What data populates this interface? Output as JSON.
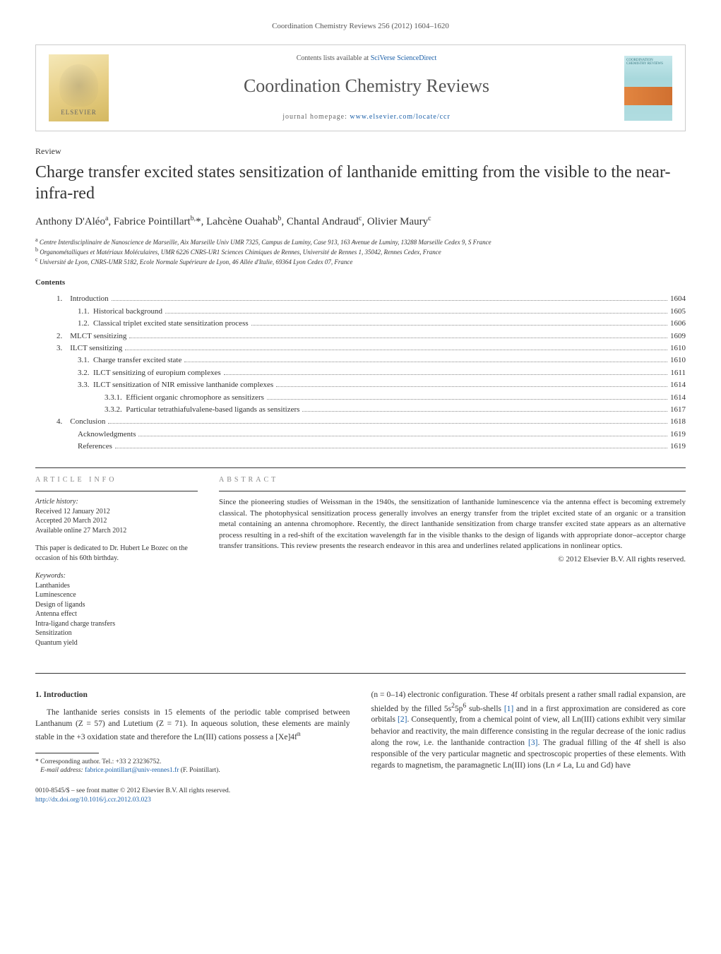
{
  "colors": {
    "link": "#1a5fa8",
    "text": "#333333",
    "muted": "#555555",
    "rule": "#333333",
    "banner_border": "#cccccc",
    "elsevier_grad_top": "#f5e8b8",
    "elsevier_grad_bot": "#d4b860",
    "cover_grad_top": "#c8e8ec",
    "cover_grad_bot": "#b0dce0",
    "cover_band": "#e28540"
  },
  "typography": {
    "title_fontsize_pt": 18,
    "journal_name_fontsize_pt": 20,
    "body_fontsize_pt": 9,
    "affil_fontsize_pt": 7,
    "font_family": "Georgia / Charis / serif"
  },
  "header": {
    "citation": "Coordination Chemistry Reviews 256 (2012) 1604–1620"
  },
  "banner": {
    "publisher_label": "ELSEVIER",
    "contents_line_prefix": "Contents lists available at ",
    "contents_line_link": "SciVerse ScienceDirect",
    "journal_name": "Coordination Chemistry Reviews",
    "homepage_prefix": "journal homepage: ",
    "homepage_link": "www.elsevier.com/locate/ccr",
    "cover_title": "COORDINATION CHEMISTRY REVIEWS"
  },
  "article": {
    "type": "Review",
    "title": "Charge transfer excited states sensitization of lanthanide emitting from the visible to the near-infra-red",
    "authors_html": "Anthony D'Aléo<sup>a</sup>, Fabrice Pointillart<sup>b,</sup>*, Lahcène Ouahab<sup>b</sup>, Chantal Andraud<sup>c</sup>, Olivier Maury<sup>c</sup>",
    "affiliations": {
      "a": "Centre Interdisciplinaire de Nanoscience de Marseille, Aix Marseille Univ UMR 7325, Campus de Luminy, Case 913, 163 Avenue de Luminy, 13288 Marseille Cedex 9, S France",
      "b": "Organométalliques et Matériaux Moléculaires, UMR 6226 CNRS-UR1 Sciences Chimiques de Rennes, Université de Rennes 1, 35042, Rennes Cedex, France",
      "c": "Université de Lyon, CNRS-UMR 5182, Ecole Normale Supérieure de Lyon, 46 Allée d'Italie, 69364 Lyon Cedex 07, France"
    }
  },
  "contents": {
    "heading": "Contents",
    "items": [
      {
        "num": "1.",
        "label": "Introduction",
        "page": "1604",
        "indent": 0
      },
      {
        "num": "1.1.",
        "label": "Historical background",
        "page": "1605",
        "indent": 1
      },
      {
        "num": "1.2.",
        "label": "Classical triplet excited state sensitization process",
        "page": "1606",
        "indent": 1
      },
      {
        "num": "2.",
        "label": "MLCT sensitizing",
        "page": "1609",
        "indent": 0
      },
      {
        "num": "3.",
        "label": "ILCT sensitizing",
        "page": "1610",
        "indent": 0
      },
      {
        "num": "3.1.",
        "label": "Charge transfer excited state",
        "page": "1610",
        "indent": 1
      },
      {
        "num": "3.2.",
        "label": "ILCT sensitizing of europium complexes",
        "page": "1611",
        "indent": 1
      },
      {
        "num": "3.3.",
        "label": "ILCT sensitization of NIR emissive lanthanide complexes",
        "page": "1614",
        "indent": 1
      },
      {
        "num": "3.3.1.",
        "label": "Efficient organic chromophore as sensitizers",
        "page": "1614",
        "indent": 2
      },
      {
        "num": "3.3.2.",
        "label": "Particular tetrathiafulvalene-based ligands as sensitizers",
        "page": "1617",
        "indent": 2
      },
      {
        "num": "4.",
        "label": "Conclusion",
        "page": "1618",
        "indent": 0
      },
      {
        "num": "",
        "label": "Acknowledgments",
        "page": "1619",
        "indent": 1
      },
      {
        "num": "",
        "label": "References",
        "page": "1619",
        "indent": 1
      }
    ]
  },
  "article_info": {
    "heading": "article info",
    "history_label": "Article history:",
    "history": [
      "Received 12 January 2012",
      "Accepted 20 March 2012",
      "Available online 27 March 2012"
    ],
    "dedication": "This paper is dedicated to Dr. Hubert Le Bozec on the occasion of his 60th birthday.",
    "keywords_label": "Keywords:",
    "keywords": [
      "Lanthanides",
      "Luminescence",
      "Design of ligands",
      "Antenna effect",
      "Intra-ligand charge transfers",
      "Sensitization",
      "Quantum yield"
    ]
  },
  "abstract": {
    "heading": "abstract",
    "text": "Since the pioneering studies of Weissman in the 1940s, the sensitization of lanthanide luminescence via the antenna effect is becoming extremely classical. The photophysical sensitization process generally involves an energy transfer from the triplet excited state of an organic or a transition metal containing an antenna chromophore. Recently, the direct lanthanide sensitization from charge transfer excited state appears as an alternative process resulting in a red-shift of the excitation wavelength far in the visible thanks to the design of ligands with appropriate donor–acceptor charge transfer transitions. This review presents the research endeavor in this area and underlines related applications in nonlinear optics.",
    "copyright": "© 2012 Elsevier B.V. All rights reserved."
  },
  "body": {
    "section_num": "1.",
    "section_title": "Introduction",
    "para1": "The lanthanide series consists in 15 elements of the periodic table comprised between Lanthanum (Z = 57) and Lutetium (Z = 71). In aqueous solution, these elements are mainly stable in the +3 oxidation state and therefore the Ln(III) cations possess a [Xe]4f",
    "para1_sup": "n",
    "para2_a": "(n = 0–14) electronic configuration. These 4f orbitals present a rather small radial expansion, are shielded by the filled 5s",
    "para2_sup1": "2",
    "para2_b": "5p",
    "para2_sup2": "6",
    "para2_c": " sub-shells ",
    "ref1": "[1]",
    "para2_d": " and in a first approximation are considered as core orbitals ",
    "ref2": "[2]",
    "para2_e": ". Consequently, from a chemical point of view, all Ln(III) cations exhibit very similar behavior and reactivity, the main difference consisting in the regular decrease of the ionic radius along the row, i.e. the lanthanide contraction ",
    "ref3": "[3]",
    "para2_f": ". The gradual filling of the 4f shell is also responsible of the very particular magnetic and spectroscopic properties of these elements. With regards to magnetism, the paramagnetic Ln(III) ions (Ln ≠ La, Lu and Gd) have"
  },
  "footnotes": {
    "corr_label": "Corresponding author. Tel.: +33 2 23236752.",
    "email_label": "E-mail address:",
    "email": "fabrice.pointillart@univ-rennes1.fr",
    "email_attribution": "(F. Pointillart)."
  },
  "bottom": {
    "issn_line": "0010-8545/$ – see front matter © 2012 Elsevier B.V. All rights reserved.",
    "doi_label": "http://dx.doi.org/",
    "doi": "10.1016/j.ccr.2012.03.023"
  }
}
